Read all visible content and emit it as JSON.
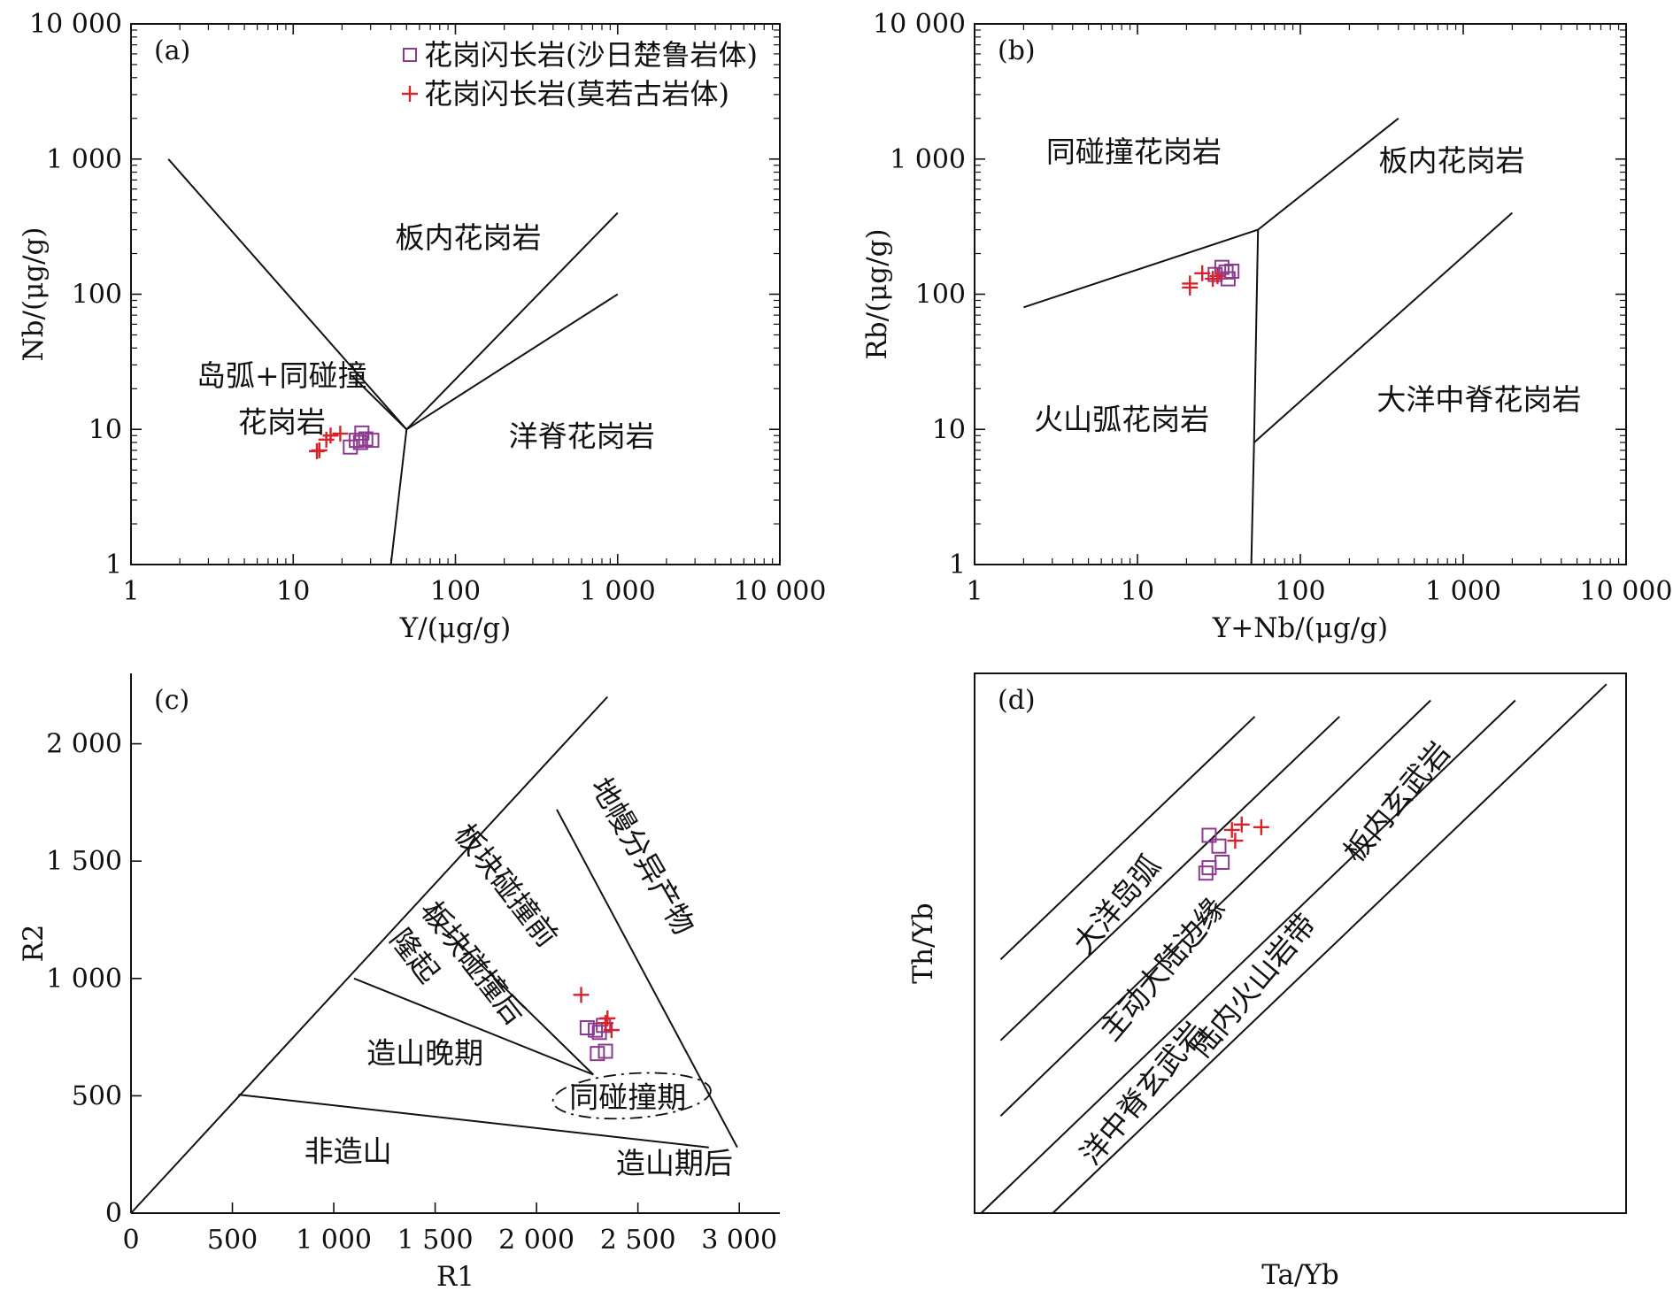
{
  "colors": {
    "series_sari": "#8b3a8f",
    "series_moruogu": "#d8232a",
    "ink": "#111111"
  },
  "chart_data": [
    {
      "id": "a",
      "type": "scatter",
      "panel_label": "(a)",
      "xlabel": "Y/(μg/g)",
      "ylabel": "Nb/(μg/g)",
      "xscale": "log",
      "yscale": "log",
      "xlim": [
        1,
        10000
      ],
      "ylim": [
        1,
        10000
      ],
      "xticks": [
        1,
        10,
        100,
        1000,
        10000
      ],
      "xticklabels": [
        "1",
        "10",
        "100",
        "1 000",
        "10 000"
      ],
      "yticks": [
        1,
        10,
        100,
        1000,
        10000
      ],
      "yticklabels": [
        "1",
        "10",
        "100",
        "1 000",
        "10 000"
      ],
      "field_lines": [
        [
          [
            1.7,
            1000
          ],
          [
            50,
            10
          ],
          [
            1000,
            400
          ]
        ],
        [
          [
            23,
            25
          ],
          [
            50,
            10
          ]
        ],
        [
          [
            50,
            10
          ],
          [
            1000,
            100
          ]
        ],
        [
          [
            50,
            10
          ],
          [
            40,
            1
          ]
        ]
      ],
      "region_labels": [
        {
          "text": "板内花岗岩",
          "x": 120,
          "y": 220
        },
        {
          "text": "岛弧+同碰撞",
          "x": 8.5,
          "y": 21
        },
        {
          "text": "花岗岩",
          "x": 8.5,
          "y": 9.5
        },
        {
          "text": "洋脊花岗岩",
          "x": 600,
          "y": 7.5
        }
      ],
      "legend": [
        {
          "name": "花岗闪长岩(沙日楚鲁岩体)",
          "marker": "square"
        },
        {
          "name": "花岗闪长岩(莫若古岩体)",
          "marker": "plus"
        }
      ],
      "series": [
        {
          "name": "花岗闪长岩(沙日楚鲁岩体)",
          "marker": "square",
          "points": [
            [
              22.5,
              7.4
            ],
            [
              24.5,
              8.3
            ],
            [
              26.5,
              9.4
            ],
            [
              28,
              8.5
            ],
            [
              30.5,
              8.3
            ],
            [
              26,
              8.0
            ]
          ]
        },
        {
          "name": "花岗闪长岩(莫若古岩体)",
          "marker": "plus",
          "points": [
            [
              14,
              6.9
            ],
            [
              16,
              8.4
            ],
            [
              17,
              9.0
            ],
            [
              19.5,
              9.3
            ],
            [
              14.5,
              7.0
            ]
          ]
        }
      ]
    },
    {
      "id": "b",
      "type": "scatter",
      "panel_label": "(b)",
      "xlabel": "Y+Nb/(μg/g)",
      "ylabel": "Rb/(μg/g)",
      "xscale": "log",
      "yscale": "log",
      "xlim": [
        1,
        10000
      ],
      "ylim": [
        1,
        10000
      ],
      "xticks": [
        1,
        10,
        100,
        1000,
        10000
      ],
      "xticklabels": [
        "1",
        "10",
        "100",
        "1 000",
        "10 000"
      ],
      "yticks": [
        1,
        10,
        100,
        1000,
        10000
      ],
      "yticklabels": [
        "1",
        "10",
        "100",
        "1 000",
        "10 000"
      ],
      "field_lines": [
        [
          [
            2,
            80
          ],
          [
            55,
            300
          ],
          [
            400,
            2000
          ]
        ],
        [
          [
            55,
            300
          ],
          [
            52,
            8
          ],
          [
            50,
            1
          ]
        ],
        [
          [
            52,
            8
          ],
          [
            2000,
            400
          ]
        ]
      ],
      "region_labels": [
        {
          "text": "同碰撞花岗岩",
          "x": 9.5,
          "y": 950
        },
        {
          "text": "板内花岗岩",
          "x": 850,
          "y": 820
        },
        {
          "text": "火山弧花岗岩",
          "x": 8,
          "y": 10
        },
        {
          "text": "大洋中脊花岗岩",
          "x": 1250,
          "y": 14
        }
      ],
      "series": [
        {
          "name": "花岗闪长岩(沙日楚鲁岩体)",
          "marker": "square",
          "points": [
            [
              30,
              140
            ],
            [
              33,
              158
            ],
            [
              36,
              130
            ],
            [
              38,
              148
            ],
            [
              35,
              146
            ]
          ]
        },
        {
          "name": "花岗闪长岩(莫若古岩体)",
          "marker": "plus",
          "points": [
            [
              21,
              112
            ],
            [
              21,
              120
            ],
            [
              25,
              143
            ],
            [
              29,
              130
            ],
            [
              31,
              136
            ]
          ]
        }
      ]
    },
    {
      "id": "c",
      "type": "scatter",
      "panel_label": "(c)",
      "xlabel": "R1",
      "ylabel": "R2",
      "xscale": "linear",
      "yscale": "linear",
      "xlim": [
        0,
        3200
      ],
      "ylim": [
        0,
        2300
      ],
      "xticks": [
        0,
        500,
        1000,
        1500,
        2000,
        2500,
        3000
      ],
      "xticklabels": [
        "0",
        "500",
        "1 000",
        "1 500",
        "2 000",
        "2 500",
        "3 000"
      ],
      "yticks": [
        0,
        500,
        1000,
        1500,
        2000
      ],
      "yticklabels": [
        "0",
        "500",
        "1 000",
        "1 500",
        "2 000"
      ],
      "field_lines": [
        [
          [
            0,
            0
          ],
          [
            2350,
            2200
          ]
        ],
        [
          [
            530,
            505
          ],
          [
            2850,
            280
          ]
        ],
        [
          [
            1100,
            1000
          ],
          [
            2280,
            590
          ]
        ],
        [
          [
            1440,
            1300
          ],
          [
            2280,
            590
          ]
        ],
        [
          [
            2100,
            1720
          ],
          [
            2990,
            280
          ]
        ]
      ],
      "dashed_ellipse": {
        "cx": 2470,
        "cy": 500,
        "rx": 390,
        "ry": 95
      },
      "region_labels": [
        {
          "text": "非造山",
          "x": 1070,
          "y": 220
        },
        {
          "text": "造山晚期",
          "x": 1450,
          "y": 640
        },
        {
          "text": "同碰撞期",
          "x": 2450,
          "y": 450
        },
        {
          "text": "造山期后",
          "x": 2680,
          "y": 170
        },
        {
          "text": "板块碰撞后",
          "x": 1650,
          "y": 1040,
          "rotate": 52
        },
        {
          "text": "隆起",
          "x": 1360,
          "y": 1070,
          "rotate": 52
        },
        {
          "text": "板块碰撞前",
          "x": 1810,
          "y": 1370,
          "rotate": 52
        },
        {
          "text": "地幔分异产物",
          "x": 2480,
          "y": 1500,
          "rotate": 60
        }
      ],
      "series": [
        {
          "name": "花岗闪长岩(沙日楚鲁岩体)",
          "marker": "square",
          "points": [
            [
              2250,
              790
            ],
            [
              2290,
              780
            ],
            [
              2330,
              800
            ],
            [
              2300,
              680
            ],
            [
              2340,
              690
            ],
            [
              2310,
              770
            ]
          ]
        },
        {
          "name": "花岗闪长岩(莫若古岩体)",
          "marker": "plus",
          "points": [
            [
              2220,
              930
            ],
            [
              2350,
              830
            ],
            [
              2370,
              780
            ],
            [
              2340,
              810
            ]
          ]
        }
      ]
    },
    {
      "id": "d",
      "type": "scatter",
      "panel_label": "(d)",
      "xlabel": "Ta/Yb",
      "ylabel": "Th/Yb",
      "xscale": "log",
      "yscale": "log",
      "xlim": [
        0,
        1
      ],
      "ylim": [
        0,
        1
      ],
      "xticks": [],
      "yticks": [],
      "field_lines": [
        [
          [
            0.04,
            0.47
          ],
          [
            0.43,
            0.92
          ]
        ],
        [
          [
            0.04,
            0.32
          ],
          [
            0.56,
            0.92
          ]
        ],
        [
          [
            0.04,
            0.18
          ],
          [
            0.7,
            0.95
          ]
        ],
        [
          [
            0.01,
            0.0
          ],
          [
            0.83,
            0.95
          ]
        ],
        [
          [
            0.12,
            0.0
          ],
          [
            0.97,
            0.98
          ]
        ]
      ],
      "region_labels": [
        {
          "text": "大洋岛弧",
          "x": 0.23,
          "y": 0.56,
          "rotate": -50
        },
        {
          "text": "主动大陆边缘",
          "x": 0.3,
          "y": 0.44,
          "rotate": -50
        },
        {
          "text": "陆内火山岩带",
          "x": 0.44,
          "y": 0.41,
          "rotate": -50
        },
        {
          "text": "板内玄武岩",
          "x": 0.66,
          "y": 0.75,
          "rotate": -50
        },
        {
          "text": "洋中脊玄武岩",
          "x": 0.27,
          "y": 0.21,
          "rotate": -50
        }
      ],
      "series": [
        {
          "name": "花岗闪长岩(沙日楚鲁岩体)",
          "marker": "square",
          "points": [
            [
              0.36,
              0.7
            ],
            [
              0.375,
              0.68
            ],
            [
              0.38,
              0.65
            ],
            [
              0.36,
              0.64
            ],
            [
              0.355,
              0.63
            ]
          ]
        },
        {
          "name": "花岗闪长岩(莫若古岩体)",
          "marker": "plus",
          "points": [
            [
              0.395,
              0.71
            ],
            [
              0.41,
              0.72
            ],
            [
              0.4,
              0.69
            ],
            [
              0.44,
              0.715
            ]
          ]
        }
      ]
    }
  ]
}
